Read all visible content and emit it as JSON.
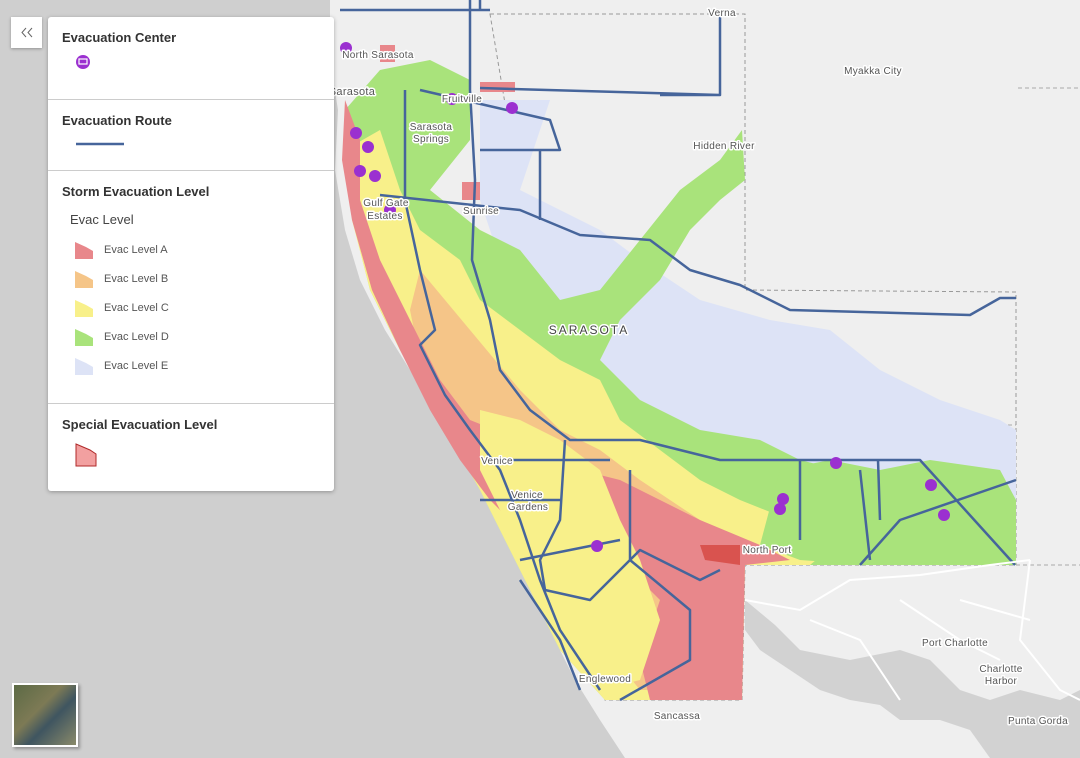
{
  "legend": {
    "sections": [
      {
        "title": "Evacuation Center"
      },
      {
        "title": "Evacuation Route"
      },
      {
        "title": "Storm Evacuation Level",
        "subtitle": "Evac Level",
        "items": [
          "Evac Level A",
          "Evac Level B",
          "Evac Level C",
          "Evac Level D",
          "Evac Level E"
        ]
      },
      {
        "title": "Special Evacuation Level"
      }
    ]
  },
  "map": {
    "labels": [
      "Verna",
      "Myakka City",
      "North Sarasota",
      "Sarasota",
      "Fruitville",
      "Sarasota",
      "Springs",
      "Hidden River",
      "Gulf Gate",
      "Estates",
      "Sunrise",
      "SARASOTA",
      "Venice",
      "Venice",
      "Gardens",
      "North Port",
      "Port Charlotte",
      "Charlotte",
      "Harbor",
      "Englewood",
      "Sancassa",
      "Punta Gorda"
    ]
  }
}
